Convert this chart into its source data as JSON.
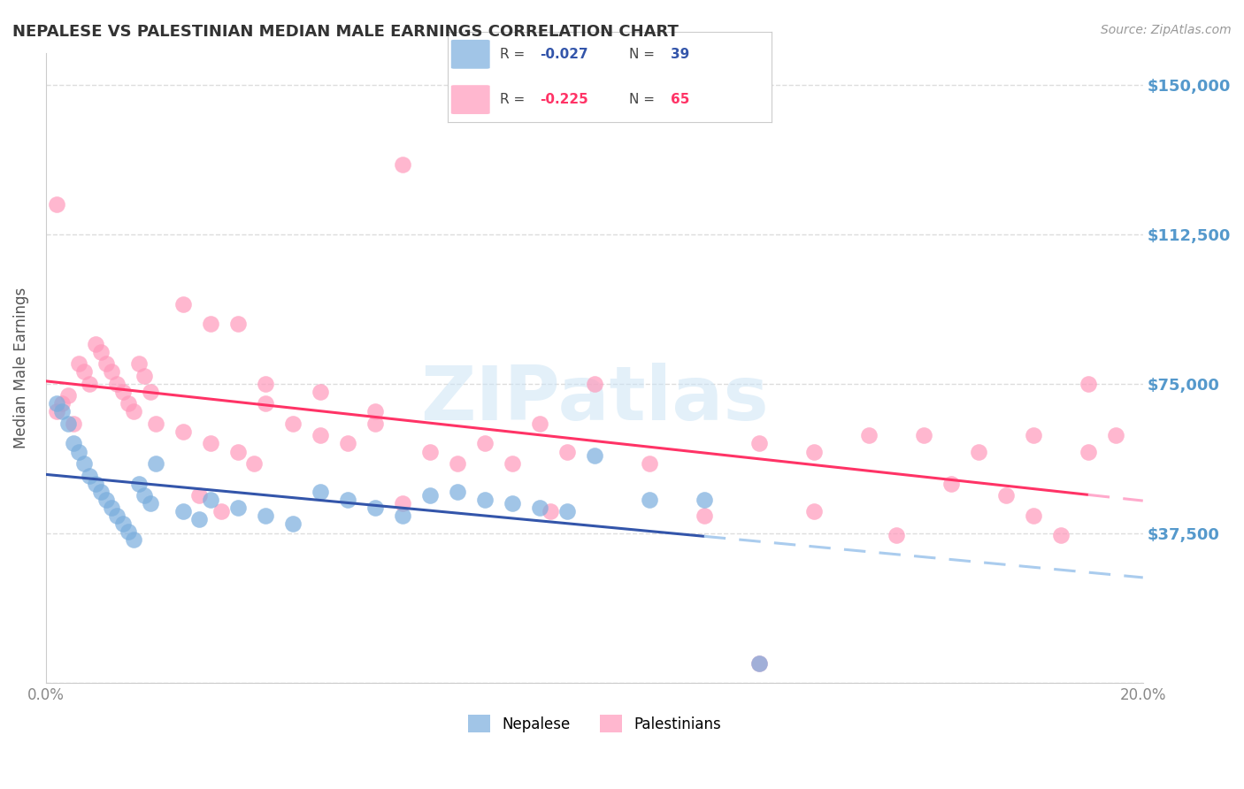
{
  "title": "NEPALESE VS PALESTINIAN MEDIAN MALE EARNINGS CORRELATION CHART",
  "source": "Source: ZipAtlas.com",
  "ylabel": "Median Male Earnings",
  "watermark": "ZIPatlas",
  "y_ticks": [
    0,
    37500,
    75000,
    112500,
    150000
  ],
  "y_tick_labels": [
    "",
    "$37,500",
    "$75,000",
    "$112,500",
    "$150,000"
  ],
  "x_range": [
    0.0,
    0.2
  ],
  "y_range": [
    0,
    158000
  ],
  "legend_labels": [
    "Nepalese",
    "Palestinians"
  ],
  "nepalese_color": "#7aaddd",
  "palestinian_color": "#ff99bb",
  "trend_nepalese_color": "#3355aa",
  "trend_palestinian_color": "#ff3366",
  "trend_nepalese_dashed_color": "#aaccee",
  "trend_palestinian_dashed_color": "#ffaacc",
  "background_color": "#ffffff",
  "grid_color": "#dddddd",
  "y_label_color": "#5599cc",
  "nepalese_x": [
    0.002,
    0.003,
    0.004,
    0.005,
    0.006,
    0.007,
    0.008,
    0.009,
    0.01,
    0.011,
    0.012,
    0.013,
    0.014,
    0.015,
    0.016,
    0.017,
    0.018,
    0.019,
    0.02,
    0.025,
    0.028,
    0.03,
    0.035,
    0.04,
    0.045,
    0.05,
    0.055,
    0.06,
    0.065,
    0.07,
    0.075,
    0.08,
    0.085,
    0.09,
    0.095,
    0.1,
    0.11,
    0.12,
    0.13
  ],
  "nepalese_y": [
    70000,
    68000,
    65000,
    60000,
    58000,
    55000,
    52000,
    50000,
    48000,
    46000,
    44000,
    42000,
    40000,
    38000,
    36000,
    50000,
    47000,
    45000,
    55000,
    43000,
    41000,
    46000,
    44000,
    42000,
    40000,
    48000,
    46000,
    44000,
    42000,
    47000,
    48000,
    46000,
    45000,
    44000,
    43000,
    57000,
    46000,
    46000,
    5000
  ],
  "palestinian_x": [
    0.002,
    0.003,
    0.004,
    0.005,
    0.006,
    0.007,
    0.008,
    0.009,
    0.01,
    0.011,
    0.012,
    0.013,
    0.014,
    0.015,
    0.016,
    0.017,
    0.018,
    0.019,
    0.02,
    0.025,
    0.028,
    0.03,
    0.032,
    0.035,
    0.038,
    0.04,
    0.045,
    0.05,
    0.055,
    0.06,
    0.065,
    0.07,
    0.075,
    0.08,
    0.085,
    0.09,
    0.092,
    0.095,
    0.1,
    0.11,
    0.12,
    0.13,
    0.14,
    0.15,
    0.155,
    0.16,
    0.165,
    0.17,
    0.175,
    0.18,
    0.185,
    0.002,
    0.025,
    0.03,
    0.05,
    0.065,
    0.06,
    0.04,
    0.035,
    0.14,
    0.13,
    0.18,
    0.19,
    0.19,
    0.195
  ],
  "palestinian_y": [
    68000,
    70000,
    72000,
    65000,
    80000,
    78000,
    75000,
    85000,
    83000,
    80000,
    78000,
    75000,
    73000,
    70000,
    68000,
    80000,
    77000,
    73000,
    65000,
    63000,
    47000,
    60000,
    43000,
    58000,
    55000,
    75000,
    65000,
    62000,
    60000,
    65000,
    45000,
    58000,
    55000,
    60000,
    55000,
    65000,
    43000,
    58000,
    75000,
    55000,
    42000,
    60000,
    43000,
    62000,
    37000,
    62000,
    50000,
    58000,
    47000,
    62000,
    37000,
    120000,
    95000,
    90000,
    73000,
    130000,
    68000,
    70000,
    90000,
    58000,
    5000,
    42000,
    75000,
    58000,
    62000
  ],
  "r_nep": "-0.027",
  "n_nep": "39",
  "r_pal": "-0.225",
  "n_pal": "65"
}
